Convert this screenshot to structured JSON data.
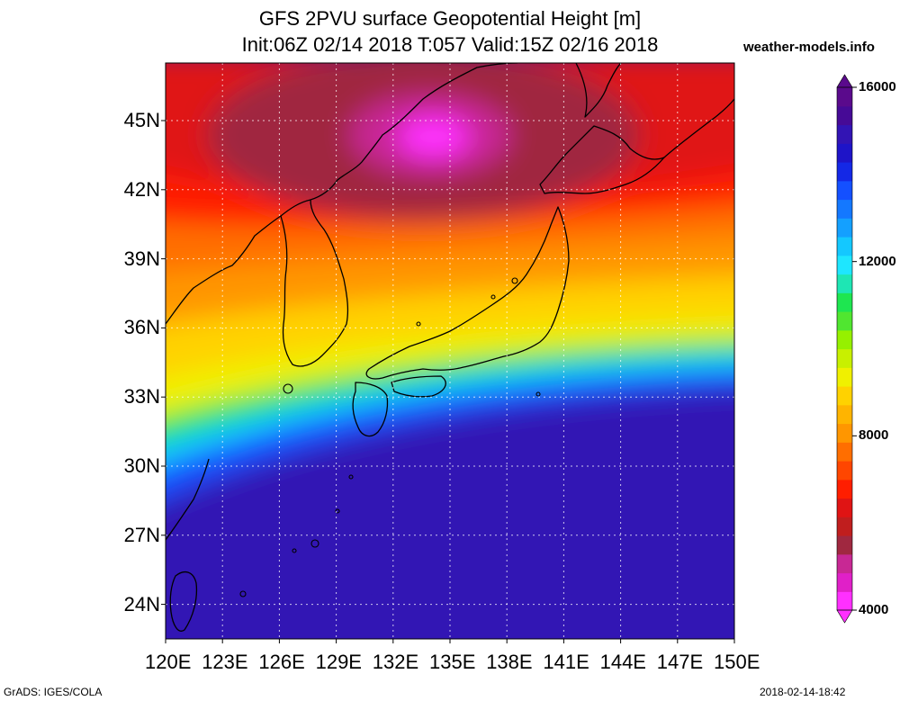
{
  "header": {
    "title_line1": "GFS 2PVU surface Geopotential Height [m]",
    "title_line2": "Init:06Z 02/14 2018 T:057 Valid:15Z 02/16 2018",
    "site": "weather-models.info"
  },
  "map": {
    "lon_ticks": [
      "120E",
      "123E",
      "126E",
      "129E",
      "132E",
      "135E",
      "138E",
      "141E",
      "144E",
      "147E",
      "150E"
    ],
    "lat_ticks": [
      "45N",
      "42N",
      "39N",
      "36N",
      "33N",
      "30N",
      "27N",
      "24N"
    ],
    "lon_range": [
      120,
      150
    ],
    "lat_range": [
      22.5,
      47.5
    ],
    "grid": true,
    "field": "geopotential height on 2PVU surface",
    "low_center": {
      "lon": 134.5,
      "lat": 44.0,
      "approx_value": 4500
    },
    "band_sample_along_lon_135": [
      {
        "lat": 46,
        "value": 6000
      },
      {
        "lat": 42,
        "value": 7000
      },
      {
        "lat": 38,
        "value": 8000
      },
      {
        "lat": 35,
        "value": 9600
      },
      {
        "lat": 33,
        "value": 12500
      },
      {
        "lat": 31,
        "value": 14500
      },
      {
        "lat": 28,
        "value": 15800
      },
      {
        "lat": 24,
        "value": 16000
      }
    ]
  },
  "colorbar": {
    "min": 4000,
    "max": 16000,
    "labels": [
      "16000",
      "12000",
      "8000",
      "4000"
    ],
    "label_values": [
      16000,
      12000,
      8000,
      4000
    ],
    "colors": [
      "#ff30ff",
      "#e020c8",
      "#c82894",
      "#a02840",
      "#c01e1e",
      "#e01414",
      "#ff1e00",
      "#ff4600",
      "#ff6e00",
      "#ff9600",
      "#ffb400",
      "#ffd200",
      "#f0f000",
      "#c8f000",
      "#96f000",
      "#50e630",
      "#1ee650",
      "#1ee6b4",
      "#1ee6ff",
      "#14c8ff",
      "#14a0ff",
      "#1478ff",
      "#1450ff",
      "#1428e6",
      "#1e14c8",
      "#3214b4",
      "#460a96",
      "#5a0a8c"
    ]
  },
  "footer": {
    "left": "GrADS: IGES/COLA",
    "right": "2018-02-14-18:42"
  }
}
